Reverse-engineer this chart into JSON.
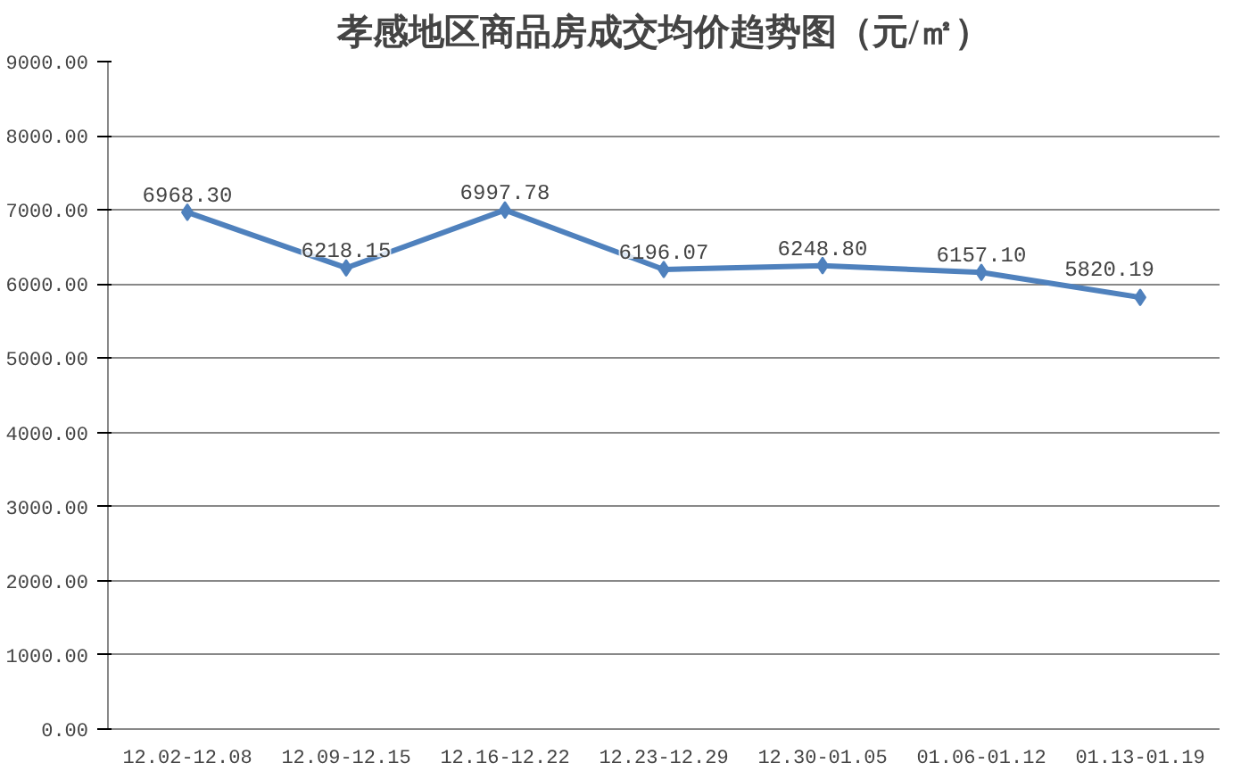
{
  "chart_data": {
    "type": "line",
    "title": "孝感地区商品房成交均价趋势图（元/㎡）",
    "categories": [
      "12.02-12.08",
      "12.09-12.15",
      "12.16-12.22",
      "12.23-12.29",
      "12.30-01.05",
      "01.06-01.12",
      "01.13-01.19"
    ],
    "series": [
      {
        "color": "#4f81bd",
        "values": [
          6968.3,
          6218.15,
          6997.78,
          6196.07,
          6248.8,
          6157.1,
          5820.19
        ],
        "value_labels": [
          "6968.30",
          "6218.15",
          "6997.78",
          "6196.07",
          "6248.80",
          "6157.10",
          "5820.19"
        ]
      }
    ],
    "ylim": [
      0,
      9000
    ],
    "yticks": [
      {
        "value": 0,
        "label": "0.00"
      },
      {
        "value": 1000,
        "label": "1000.00"
      },
      {
        "value": 2000,
        "label": "2000.00"
      },
      {
        "value": 3000,
        "label": "3000.00"
      },
      {
        "value": 4000,
        "label": "4000.00"
      },
      {
        "value": 5000,
        "label": "5000.00"
      },
      {
        "value": 6000,
        "label": "6000.00"
      },
      {
        "value": 7000,
        "label": "7000.00"
      },
      {
        "value": 8000,
        "label": "8000.00"
      },
      {
        "value": 9000,
        "label": "9000.00"
      }
    ],
    "grid": "y",
    "marker": "diamond",
    "line_style": "solid"
  }
}
